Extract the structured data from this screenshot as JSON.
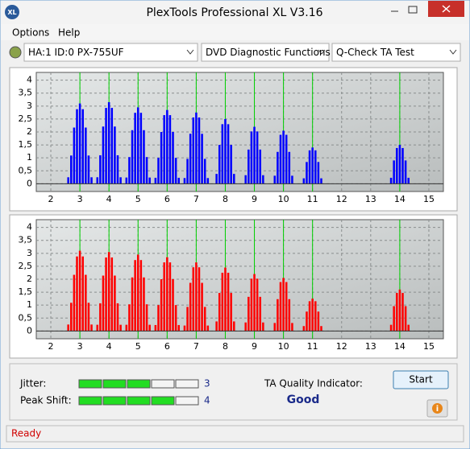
{
  "window": {
    "title": "PlexTools Professional XL V3.16",
    "icon": "XL"
  },
  "menu": [
    "Options",
    "Help"
  ],
  "toolbar": {
    "drive": "HA:1 ID:0  PX-755UF",
    "function": "DVD Diagnostic Functions",
    "test": "Q-Check TA Test"
  },
  "chart_data": [
    {
      "type": "bar",
      "color": "#0000ff",
      "x": [
        2.6,
        2.7,
        2.8,
        2.9,
        3,
        3.1,
        3.2,
        3.3,
        3.4,
        3.6,
        3.7,
        3.8,
        3.9,
        4,
        4.1,
        4.2,
        4.3,
        4.4,
        4.6,
        4.7,
        4.8,
        4.9,
        5,
        5.1,
        5.2,
        5.3,
        5.4,
        5.6,
        5.7,
        5.8,
        5.9,
        6,
        6.1,
        6.2,
        6.3,
        6.4,
        6.6,
        6.7,
        6.8,
        6.9,
        7,
        7.1,
        7.2,
        7.3,
        7.4,
        7.7,
        7.8,
        7.9,
        8,
        8.1,
        8.2,
        8.3,
        8.7,
        8.8,
        8.9,
        9,
        9.1,
        9.2,
        9.3,
        9.7,
        9.8,
        9.9,
        10,
        10.1,
        10.2,
        10.3,
        10.7,
        10.8,
        10.9,
        11,
        11.1,
        11.2,
        11.3,
        13.7,
        13.8,
        13.9,
        14,
        14.1,
        14.2,
        14.3
      ],
      "values": [
        0.25,
        1.09,
        2.17,
        2.88,
        3.1,
        2.88,
        2.17,
        1.09,
        0.25,
        0.25,
        1.1,
        2.21,
        2.93,
        3.15,
        2.93,
        2.21,
        1.1,
        0.25,
        0.24,
        1.03,
        2.07,
        2.74,
        2.95,
        2.74,
        2.07,
        1.03,
        0.24,
        0.23,
        1,
        2,
        2.65,
        2.85,
        2.65,
        2,
        1,
        0.23,
        0.22,
        0.96,
        1.93,
        2.56,
        2.75,
        2.56,
        1.93,
        0.96,
        0.22,
        0.38,
        1.5,
        2.3,
        2.5,
        2.3,
        1.5,
        0.38,
        0.33,
        1.32,
        2.02,
        2.2,
        2.02,
        1.32,
        0.33,
        0.31,
        1.23,
        1.89,
        2.05,
        1.89,
        1.23,
        0.31,
        0.21,
        0.84,
        1.29,
        1.4,
        1.29,
        0.84,
        0.21,
        0.23,
        0.9,
        1.38,
        1.5,
        1.38,
        0.9,
        0.23
      ],
      "xlim": [
        1.5,
        15.5
      ],
      "xticks": [
        2,
        3,
        4,
        5,
        6,
        7,
        8,
        9,
        10,
        11,
        12,
        13,
        14,
        15
      ],
      "ylim": [
        -0.3,
        4.3
      ],
      "yticks": [
        0,
        {
          "value": 0.5,
          "label": "0,5"
        },
        1,
        {
          "value": 1.5,
          "label": "1,5"
        },
        2,
        {
          "value": 2.5,
          "label": "2,5"
        },
        3,
        {
          "value": 3.5,
          "label": "3,5"
        },
        4
      ],
      "grid": true,
      "reference_lines": [
        3,
        4,
        5,
        6,
        7,
        8,
        9,
        10,
        11,
        14
      ],
      "reference_color": "#00d000"
    },
    {
      "type": "bar",
      "color": "#ff0000",
      "x": [
        2.6,
        2.7,
        2.8,
        2.9,
        3,
        3.1,
        3.2,
        3.3,
        3.4,
        3.6,
        3.7,
        3.8,
        3.9,
        4,
        4.1,
        4.2,
        4.3,
        4.4,
        4.6,
        4.7,
        4.8,
        4.9,
        5,
        5.1,
        5.2,
        5.3,
        5.4,
        5.6,
        5.7,
        5.8,
        5.9,
        6,
        6.1,
        6.2,
        6.3,
        6.4,
        6.6,
        6.7,
        6.8,
        6.9,
        7,
        7.1,
        7.2,
        7.3,
        7.4,
        7.7,
        7.8,
        7.9,
        8,
        8.1,
        8.2,
        8.3,
        8.7,
        8.8,
        8.9,
        9,
        9.1,
        9.2,
        9.3,
        9.7,
        9.8,
        9.9,
        10,
        10.1,
        10.2,
        10.3,
        10.7,
        10.8,
        10.9,
        11,
        11.1,
        11.2,
        11.3,
        13.7,
        13.8,
        13.9,
        14,
        14.1,
        14.2,
        14.3
      ],
      "values": [
        0.25,
        1.09,
        2.17,
        2.88,
        3.1,
        2.88,
        2.17,
        1.09,
        0.25,
        0.24,
        1.07,
        2.14,
        2.84,
        3.05,
        2.84,
        2.14,
        1.07,
        0.24,
        0.24,
        1.03,
        2.07,
        2.74,
        2.95,
        2.74,
        2.07,
        1.03,
        0.24,
        0.23,
        1,
        2,
        2.65,
        2.85,
        2.65,
        2,
        1,
        0.23,
        0.21,
        0.93,
        1.86,
        2.46,
        2.65,
        2.46,
        1.86,
        0.93,
        0.21,
        0.37,
        1.47,
        2.25,
        2.45,
        2.25,
        1.47,
        0.37,
        0.33,
        1.32,
        2.02,
        2.2,
        2.02,
        1.32,
        0.33,
        0.31,
        1.23,
        1.89,
        2.05,
        1.89,
        1.23,
        0.31,
        0.19,
        0.75,
        1.15,
        1.25,
        1.15,
        0.75,
        0.19,
        0.24,
        0.96,
        1.47,
        1.6,
        1.47,
        0.96,
        0.24
      ],
      "xlim": [
        1.5,
        15.5
      ],
      "xticks": [
        2,
        3,
        4,
        5,
        6,
        7,
        8,
        9,
        10,
        11,
        12,
        13,
        14,
        15
      ],
      "ylim": [
        -0.3,
        4.3
      ],
      "yticks": [
        0,
        {
          "value": 0.5,
          "label": "0,5"
        },
        1,
        {
          "value": 1.5,
          "label": "1,5"
        },
        2,
        {
          "value": 2.5,
          "label": "2,5"
        },
        3,
        {
          "value": 3.5,
          "label": "3,5"
        },
        4
      ],
      "grid": true,
      "reference_lines": [
        3,
        4,
        5,
        6,
        7,
        8,
        9,
        10,
        11,
        14
      ],
      "reference_color": "#00d000"
    }
  ],
  "results": {
    "meters": [
      {
        "label": "Jitter:",
        "value": 3
      },
      {
        "label": "Peak Shift:",
        "value": 4
      }
    ],
    "quality_label": "TA Quality Indicator:",
    "quality": "Good",
    "start": "Start"
  },
  "status": "Ready"
}
